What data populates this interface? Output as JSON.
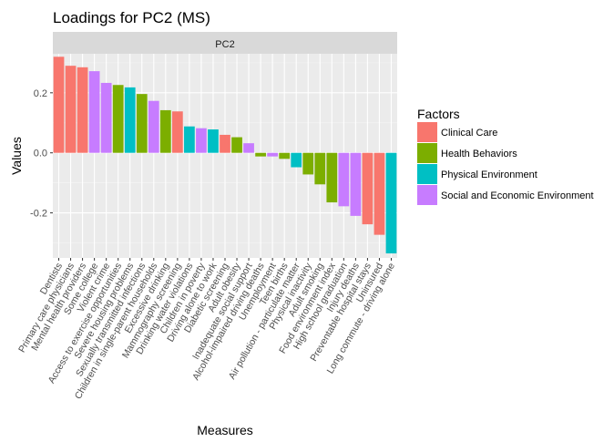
{
  "chart_data": {
    "type": "bar",
    "title": "Loadings for PC2 (MS)",
    "facet_label": "PC2",
    "xlabel": "Measures",
    "ylabel": "Values",
    "ylim": [
      -0.35,
      0.33
    ],
    "yticks": [
      -0.2,
      0.0,
      0.2
    ],
    "ytick_labels": [
      "-0.2",
      "0.0",
      "0.2"
    ],
    "grid": true,
    "legend": {
      "title": "Factors",
      "placement": "right",
      "entries": [
        {
          "name": "Clinical Care",
          "color": "#F8766D"
        },
        {
          "name": "Health Behaviors",
          "color": "#7CAE00"
        },
        {
          "name": "Physical Environment",
          "color": "#00BFC4"
        },
        {
          "name": "Social and Economic Environment",
          "color": "#C77CFF"
        }
      ]
    },
    "categories": [
      "Dentists",
      "Primary care physicians",
      "Mental health providers",
      "Some college",
      "Violent crime",
      "Access to exercise opportunities",
      "Severe housing problems",
      "Sexually transmitted infections",
      "Children in single-parent households",
      "Excessive drinking",
      "Mammography screening",
      "Drinking water violations",
      "Children in poverty",
      "Driving alone to work",
      "Diabetic screening",
      "Adult obesity",
      "Inadequate social support",
      "Alcohol-impaired driving deaths",
      "Unemployment",
      "Teen births",
      "Air pollution - particulate matter",
      "Physical inactivity",
      "Adult smoking",
      "Food environment index",
      "High school graduation",
      "Injury deaths",
      "Preventable hospital stays",
      "Uninsured",
      "Long commute - driving alone"
    ],
    "values": [
      0.32,
      0.29,
      0.285,
      0.272,
      0.233,
      0.226,
      0.218,
      0.196,
      0.173,
      0.142,
      0.138,
      0.088,
      0.082,
      0.078,
      0.06,
      0.052,
      0.032,
      -0.012,
      -0.012,
      -0.02,
      -0.048,
      -0.072,
      -0.105,
      -0.165,
      -0.178,
      -0.21,
      -0.238,
      -0.273,
      -0.335
    ],
    "factors": [
      "Clinical Care",
      "Clinical Care",
      "Clinical Care",
      "Social and Economic Environment",
      "Social and Economic Environment",
      "Health Behaviors",
      "Physical Environment",
      "Health Behaviors",
      "Social and Economic Environment",
      "Health Behaviors",
      "Clinical Care",
      "Physical Environment",
      "Social and Economic Environment",
      "Physical Environment",
      "Clinical Care",
      "Health Behaviors",
      "Social and Economic Environment",
      "Health Behaviors",
      "Social and Economic Environment",
      "Health Behaviors",
      "Physical Environment",
      "Health Behaviors",
      "Health Behaviors",
      "Health Behaviors",
      "Social and Economic Environment",
      "Social and Economic Environment",
      "Clinical Care",
      "Clinical Care",
      "Physical Environment"
    ]
  }
}
